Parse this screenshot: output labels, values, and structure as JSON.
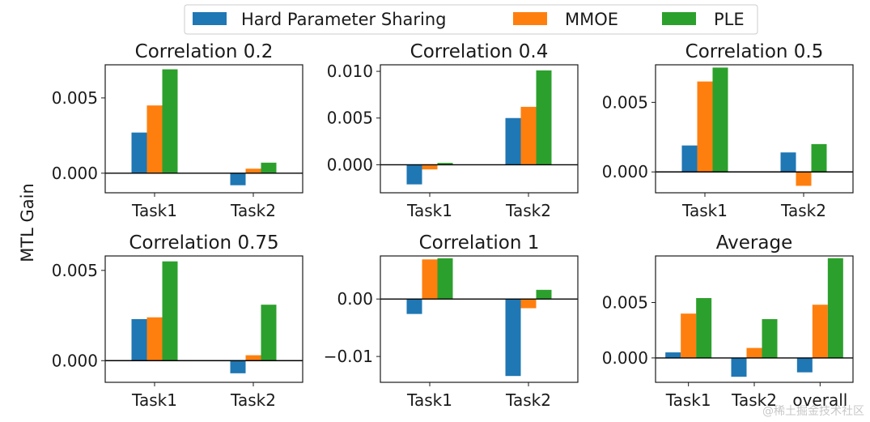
{
  "figure": {
    "shared_ylabel": "MTL Gain",
    "legend": {
      "placement": "top-center",
      "entries": [
        {
          "name": "Hard Parameter Sharing",
          "color": "#1f77b4"
        },
        {
          "name": "MMOE",
          "color": "#ff7f0e"
        },
        {
          "name": "PLE",
          "color": "#2ca02c"
        }
      ]
    },
    "watermark": "@稀土掘金技术社区"
  },
  "chart_data": [
    {
      "type": "bar",
      "title": "Correlation 0.2",
      "categories": [
        "Task1",
        "Task2"
      ],
      "series": [
        {
          "name": "Hard Parameter Sharing",
          "values": [
            0.0027,
            -0.0008
          ]
        },
        {
          "name": "MMOE",
          "values": [
            0.0045,
            0.0003
          ]
        },
        {
          "name": "PLE",
          "values": [
            0.0069,
            0.0007
          ]
        }
      ],
      "ylim": [
        -0.0013,
        0.0072
      ],
      "yticks": [
        0.0,
        0.005
      ],
      "yticklabels": [
        "0.000",
        "0.005"
      ],
      "xlabel": "",
      "ylabel": ""
    },
    {
      "type": "bar",
      "title": "Correlation 0.4",
      "categories": [
        "Task1",
        "Task2"
      ],
      "series": [
        {
          "name": "Hard Parameter Sharing",
          "values": [
            -0.0021,
            0.005
          ]
        },
        {
          "name": "MMOE",
          "values": [
            -0.0005,
            0.0062
          ]
        },
        {
          "name": "PLE",
          "values": [
            0.0002,
            0.0101
          ]
        }
      ],
      "ylim": [
        -0.003,
        0.0107
      ],
      "yticks": [
        0.0,
        0.005,
        0.01
      ],
      "yticklabels": [
        "0.000",
        "0.005",
        "0.010"
      ],
      "xlabel": "",
      "ylabel": ""
    },
    {
      "type": "bar",
      "title": "Correlation 0.5",
      "categories": [
        "Task1",
        "Task2"
      ],
      "series": [
        {
          "name": "Hard Parameter Sharing",
          "values": [
            0.0019,
            0.0014
          ]
        },
        {
          "name": "MMOE",
          "values": [
            0.0065,
            -0.001
          ]
        },
        {
          "name": "PLE",
          "values": [
            0.0075,
            0.002
          ]
        }
      ],
      "ylim": [
        -0.0015,
        0.0077
      ],
      "yticks": [
        0.0,
        0.005
      ],
      "yticklabels": [
        "0.000",
        "0.005"
      ],
      "xlabel": "",
      "ylabel": ""
    },
    {
      "type": "bar",
      "title": "Correlation 0.75",
      "categories": [
        "Task1",
        "Task2"
      ],
      "series": [
        {
          "name": "Hard Parameter Sharing",
          "values": [
            0.0023,
            -0.0007
          ]
        },
        {
          "name": "MMOE",
          "values": [
            0.0024,
            0.0003
          ]
        },
        {
          "name": "PLE",
          "values": [
            0.0055,
            0.0031
          ]
        }
      ],
      "ylim": [
        -0.0012,
        0.0058
      ],
      "yticks": [
        0.0,
        0.005
      ],
      "yticklabels": [
        "0.000",
        "0.005"
      ],
      "xlabel": "",
      "ylabel": ""
    },
    {
      "type": "bar",
      "title": "Correlation 1",
      "categories": [
        "Task1",
        "Task2"
      ],
      "series": [
        {
          "name": "Hard Parameter Sharing",
          "values": [
            -0.0026,
            -0.0134
          ]
        },
        {
          "name": "MMOE",
          "values": [
            0.0069,
            -0.0016
          ]
        },
        {
          "name": "PLE",
          "values": [
            0.0071,
            0.0016
          ]
        }
      ],
      "ylim": [
        -0.0145,
        0.0075
      ],
      "yticks": [
        -0.01,
        0.0
      ],
      "yticklabels": [
        "−0.01",
        "0.00"
      ],
      "xlabel": "",
      "ylabel": ""
    },
    {
      "type": "bar",
      "title": "Average",
      "categories": [
        "Task1",
        "Task2",
        "overall"
      ],
      "series": [
        {
          "name": "Hard Parameter Sharing",
          "values": [
            0.0005,
            -0.0017,
            -0.0013
          ]
        },
        {
          "name": "MMOE",
          "values": [
            0.004,
            0.0009,
            0.0048
          ]
        },
        {
          "name": "PLE",
          "values": [
            0.0054,
            0.0035,
            0.009
          ]
        }
      ],
      "ylim": [
        -0.0022,
        0.0092
      ],
      "yticks": [
        0.0,
        0.005
      ],
      "yticklabels": [
        "0.000",
        "0.005"
      ],
      "xlabel": "",
      "ylabel": ""
    }
  ]
}
